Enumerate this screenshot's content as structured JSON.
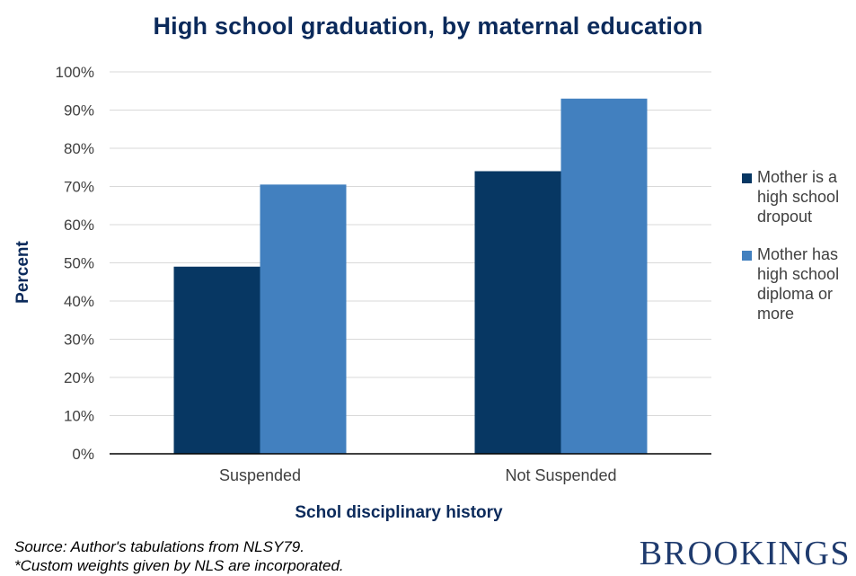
{
  "chart_data": {
    "type": "bar",
    "title": "High school graduation, by maternal education",
    "xlabel": "Schol disciplinary history",
    "ylabel": "Percent",
    "categories": [
      "Suspended",
      "Not Suspended"
    ],
    "series": [
      {
        "name": "Mother is a high school dropout",
        "name_lines": [
          "Mother is a",
          "high school",
          "dropout"
        ],
        "values": [
          49,
          74
        ],
        "color": "#073763"
      },
      {
        "name": "Mother has high school diploma or more",
        "name_lines": [
          "Mother has",
          "high school",
          "diploma or",
          "more"
        ],
        "values": [
          70.5,
          93
        ],
        "color": "#4280bf"
      }
    ],
    "ylim": [
      0,
      100
    ],
    "yticks": [
      "0%",
      "10%",
      "20%",
      "30%",
      "40%",
      "50%",
      "60%",
      "70%",
      "80%",
      "90%",
      "100%"
    ],
    "grid": true,
    "legend_position": "right"
  },
  "footer": {
    "source_lines": [
      "Source: Author's tabulations from NLSY79.",
      "*Custom weights given by NLS are incorporated."
    ],
    "brand": "BROOKINGS"
  }
}
